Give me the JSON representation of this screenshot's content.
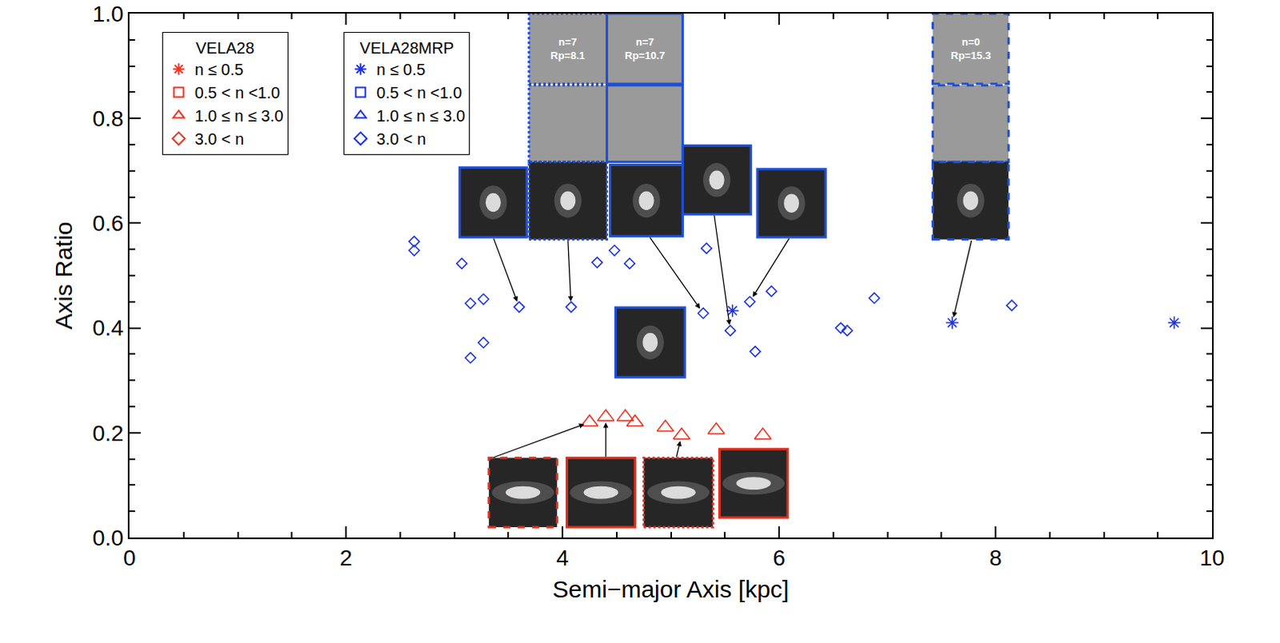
{
  "chart_data": {
    "type": "scatter",
    "x_label": "Semi−major Axis [kpc]",
    "y_label": "Axis Ratio",
    "xlim": [
      0,
      10
    ],
    "xticks": [
      0,
      2,
      4,
      6,
      8,
      10
    ],
    "ylim": [
      0,
      1
    ],
    "yticks": [
      {
        "value": 0,
        "label": "0.0"
      },
      {
        "value": 0.2,
        "label": "0.2"
      },
      {
        "value": 0.4,
        "label": "0.4"
      },
      {
        "value": 0.6,
        "label": "0.6"
      },
      {
        "value": 0.8,
        "label": "0.8"
      },
      {
        "value": 1,
        "label": "1.0"
      }
    ],
    "legend": "upper left",
    "groups": [
      {
        "title": "VELA28",
        "series": [
          {
            "name": "n ≤ 0.5",
            "marker": "asterisk",
            "color": "#ee3524",
            "x": [],
            "y": []
          },
          {
            "name": "0.5 < n <1.0",
            "marker": "square",
            "color": "#ee3524",
            "x": [],
            "y": []
          },
          {
            "name": "1.0 ≤ n ≤ 3.0",
            "marker": "triangle",
            "color": "#ee3524",
            "x": [
              4.25,
              4.4,
              4.58,
              4.67,
              4.95,
              5.1,
              5.42,
              5.85
            ],
            "y": [
              0.22,
              0.23,
              0.23,
              0.22,
              0.21,
              0.195,
              0.205,
              0.195
            ]
          },
          {
            "name": "3.0 < n",
            "marker": "diamond",
            "color": "#ee3524",
            "x": [],
            "y": []
          }
        ]
      },
      {
        "title": "VELA28MRP",
        "series": [
          {
            "name": "n ≤ 0.5",
            "marker": "asterisk",
            "color": "#1f35e0",
            "x": [
              5.57,
              7.6,
              9.65
            ],
            "y": [
              0.433,
              0.41,
              0.41
            ]
          },
          {
            "name": "0.5 < n <1.0",
            "marker": "square",
            "color": "#1f35e0",
            "x": [],
            "y": []
          },
          {
            "name": "1.0 ≤ n ≤ 3.0",
            "marker": "triangle",
            "color": "#1f35e0",
            "x": [],
            "y": []
          },
          {
            "name": "3.0 < n",
            "marker": "diamond",
            "color": "#1f35e0",
            "x": [
              2.63,
              2.63,
              3.07,
              3.15,
              3.27,
              3.15,
              3.27,
              3.6,
              4.08,
              4.32,
              4.48,
              4.62,
              5.3,
              5.33,
              5.55,
              5.73,
              5.78,
              5.93,
              6.57,
              6.63,
              6.88,
              8.15
            ],
            "y": [
              0.565,
              0.548,
              0.523,
              0.447,
              0.455,
              0.343,
              0.372,
              0.44,
              0.44,
              0.525,
              0.548,
              0.523,
              0.428,
              0.552,
              0.395,
              0.45,
              0.355,
              0.47,
              0.4,
              0.395,
              0.457,
              0.443
            ]
          }
        ]
      }
    ],
    "thumbnail_labels": [
      [
        "n=7",
        "Rp=8.1"
      ],
      [
        "n=7",
        "Rp=10.7"
      ],
      [
        "n=0",
        "Rp=15.3"
      ]
    ]
  }
}
